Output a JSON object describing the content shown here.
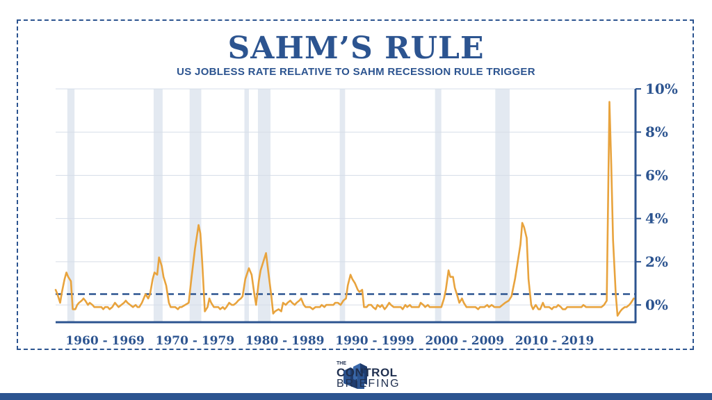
{
  "title": "SAHM’S RULE",
  "subtitle": "US JOBLESS RATE RELATIVE TO SAHM RECESSION RULE TRIGGER",
  "logo": {
    "the": "THE",
    "word1": "CONTROL",
    "word2": "BRIEFING"
  },
  "colors": {
    "brand": "#2c5490",
    "line": "#e8a33d",
    "recession_band": "#e3e9f1",
    "grid": "#d6dde8"
  },
  "chart_data": {
    "type": "line",
    "title": "SAHM’S RULE",
    "subtitle": "US JOBLESS RATE RELATIVE TO SAHM RECESSION RULE TRIGGER",
    "xlabel": "",
    "ylabel": "",
    "y_axis_side": "right",
    "xlim": [
      1959.0,
      2023.5
    ],
    "ylim": [
      -0.8,
      10
    ],
    "yticks": [
      0,
      2,
      4,
      6,
      8,
      10
    ],
    "ytick_labels": [
      "0%",
      "2%",
      "4%",
      "6%",
      "8%",
      "10%"
    ],
    "x_category_labels": [
      {
        "label": "1960 - 1969",
        "center": 1964.5
      },
      {
        "label": "1970 - 1979",
        "center": 1974.5
      },
      {
        "label": "1980 - 1989",
        "center": 1984.5
      },
      {
        "label": "1990 - 1999",
        "center": 1994.5
      },
      {
        "label": "2000 - 2009",
        "center": 2004.5
      },
      {
        "label": "2010 - 2019",
        "center": 2014.5
      }
    ],
    "grid": true,
    "threshold": {
      "value": 0.5,
      "style": "dashed"
    },
    "recession_bands": [
      [
        1960.3,
        1961.1
      ],
      [
        1969.9,
        1970.9
      ],
      [
        1973.9,
        1975.2
      ],
      [
        1980.0,
        1980.5
      ],
      [
        1981.5,
        1982.9
      ],
      [
        1990.6,
        1991.2
      ],
      [
        2001.2,
        2001.9
      ],
      [
        2007.9,
        2009.5
      ]
    ],
    "series": [
      {
        "x": [
          1959.0,
          1959.2,
          1959.5,
          1959.7,
          1960.0,
          1960.2,
          1960.4,
          1960.7,
          1960.9,
          1961.2,
          1961.4,
          1961.6,
          1961.9,
          1962.1,
          1962.3,
          1962.6,
          1962.8,
          1963.1,
          1963.3,
          1963.6,
          1963.8,
          1964.1,
          1964.3,
          1964.5,
          1964.8,
          1965.0,
          1965.3,
          1965.6,
          1965.8,
          1966.0,
          1966.3,
          1966.6,
          1966.8,
          1967.0,
          1967.3,
          1967.6,
          1967.9,
          1968.1,
          1968.3,
          1968.6,
          1968.8,
          1969.0,
          1969.3,
          1969.5,
          1969.8,
          1970.0,
          1970.3,
          1970.5,
          1970.8,
          1971.0,
          1971.3,
          1971.6,
          1971.8,
          1972.0,
          1972.3,
          1972.6,
          1972.8,
          1973.0,
          1973.4,
          1973.8,
          1974.1,
          1974.5,
          1974.9,
          1975.1,
          1975.3,
          1975.6,
          1975.9,
          1976.1,
          1976.3,
          1976.6,
          1976.8,
          1977.1,
          1977.3,
          1977.6,
          1977.8,
          1978.0,
          1978.3,
          1978.6,
          1978.8,
          1979.1,
          1979.3,
          1979.6,
          1979.8,
          1980.1,
          1980.5,
          1980.8,
          1981.1,
          1981.3,
          1981.6,
          1981.8,
          1982.1,
          1982.4,
          1982.7,
          1983.0,
          1983.2,
          1983.4,
          1983.8,
          1984.1,
          1984.3,
          1984.6,
          1984.8,
          1985.1,
          1985.3,
          1985.6,
          1985.8,
          1986.1,
          1986.3,
          1986.6,
          1986.8,
          1987.1,
          1987.3,
          1987.6,
          1987.9,
          1988.1,
          1988.4,
          1988.6,
          1988.9,
          1989.1,
          1989.4,
          1989.6,
          1989.9,
          1990.1,
          1990.4,
          1990.7,
          1991.0,
          1991.3,
          1991.5,
          1991.8,
          1992.0,
          1992.3,
          1992.6,
          1992.8,
          1993.1,
          1993.3,
          1993.6,
          1993.8,
          1994.1,
          1994.3,
          1994.6,
          1994.8,
          1995.1,
          1995.3,
          1995.6,
          1995.8,
          1996.1,
          1996.3,
          1996.6,
          1996.8,
          1997.1,
          1997.4,
          1997.6,
          1997.9,
          1998.1,
          1998.4,
          1998.6,
          1998.9,
          1999.1,
          1999.4,
          1999.6,
          1999.9,
          2000.1,
          2000.4,
          2000.6,
          2000.9,
          2001.2,
          2001.4,
          2001.7,
          2001.9,
          2002.2,
          2002.4,
          2002.7,
          2002.9,
          2003.2,
          2003.4,
          2003.7,
          2003.9,
          2004.2,
          2004.4,
          2004.7,
          2004.9,
          2005.2,
          2005.5,
          2005.7,
          2006.0,
          2006.2,
          2006.5,
          2006.7,
          2007.0,
          2007.2,
          2007.5,
          2007.8,
          2008.1,
          2008.4,
          2008.7,
          2009.0,
          2009.4,
          2009.7,
          2010.1,
          2010.4,
          2010.7,
          2010.9,
          2011.1,
          2011.4,
          2011.6,
          2011.9,
          2012.1,
          2012.4,
          2012.7,
          2012.9,
          2013.2,
          2013.4,
          2013.7,
          2013.9,
          2014.2,
          2014.4,
          2014.7,
          2014.9,
          2015.2,
          2015.4,
          2015.7,
          2015.9,
          2016.2,
          2016.5,
          2016.7,
          2017.0,
          2017.2,
          2017.5,
          2017.7,
          2018.0,
          2018.2,
          2018.5,
          2018.7,
          2019.0,
          2019.2,
          2019.5,
          2019.7,
          2020.0,
          2020.3,
          2020.6,
          2020.8,
          2021.0,
          2021.3,
          2021.5,
          2021.8,
          2022.0,
          2022.3,
          2022.5,
          2022.8,
          2023.0,
          2023.3
        ],
        "y": [
          0.7,
          0.5,
          0.1,
          0.6,
          1.2,
          1.5,
          1.3,
          1.1,
          -0.2,
          -0.2,
          0.0,
          0.1,
          0.2,
          0.3,
          0.2,
          0.0,
          0.1,
          0.0,
          -0.1,
          -0.1,
          -0.1,
          -0.1,
          -0.2,
          -0.1,
          -0.1,
          -0.2,
          -0.1,
          0.1,
          0.0,
          -0.1,
          0.0,
          0.1,
          0.2,
          0.1,
          0.0,
          -0.1,
          0.0,
          -0.1,
          -0.1,
          0.1,
          0.3,
          0.5,
          0.3,
          0.5,
          1.2,
          1.5,
          1.4,
          2.2,
          1.8,
          1.3,
          0.9,
          0.1,
          -0.1,
          -0.1,
          -0.1,
          -0.2,
          -0.1,
          -0.1,
          0.0,
          0.1,
          1.2,
          2.6,
          3.7,
          3.3,
          2.0,
          -0.3,
          -0.1,
          0.3,
          0.1,
          -0.1,
          -0.1,
          -0.1,
          -0.2,
          -0.1,
          -0.2,
          -0.1,
          0.1,
          0.0,
          0.0,
          0.1,
          0.2,
          0.3,
          0.4,
          1.2,
          1.7,
          1.4,
          0.5,
          0.0,
          1.1,
          1.6,
          2.0,
          2.4,
          1.4,
          0.4,
          -0.4,
          -0.3,
          -0.2,
          -0.3,
          0.1,
          0.0,
          0.1,
          0.2,
          0.1,
          0.0,
          0.1,
          0.2,
          0.3,
          0.0,
          -0.1,
          -0.1,
          -0.1,
          -0.2,
          -0.1,
          -0.1,
          -0.1,
          0.0,
          -0.1,
          0.0,
          0.0,
          0.0,
          0.0,
          0.1,
          0.1,
          0.0,
          0.2,
          0.3,
          0.9,
          1.4,
          1.2,
          1.0,
          0.7,
          0.6,
          0.7,
          -0.1,
          -0.1,
          0.0,
          0.0,
          -0.1,
          -0.2,
          0.0,
          -0.1,
          0.0,
          -0.2,
          -0.1,
          0.1,
          0.0,
          -0.1,
          -0.1,
          -0.1,
          -0.1,
          -0.2,
          0.0,
          -0.1,
          0.0,
          -0.1,
          -0.1,
          -0.1,
          -0.1,
          0.1,
          0.0,
          -0.1,
          0.0,
          -0.1,
          -0.1,
          -0.1,
          -0.1,
          -0.1,
          -0.1,
          0.3,
          0.7,
          1.6,
          1.3,
          1.3,
          0.8,
          0.4,
          0.1,
          0.3,
          0.1,
          -0.1,
          -0.1,
          -0.1,
          -0.1,
          -0.1,
          -0.2,
          -0.1,
          -0.1,
          -0.1,
          0.0,
          -0.1,
          0.0,
          -0.1,
          -0.1,
          -0.1,
          0.0,
          0.1,
          0.2,
          0.4,
          1.2,
          2.0,
          2.8,
          3.8,
          3.6,
          3.1,
          1.2,
          0.0,
          -0.2,
          0.0,
          -0.2,
          -0.2,
          0.1,
          -0.1,
          -0.1,
          -0.1,
          -0.2,
          -0.1,
          -0.1,
          0.0,
          -0.1,
          -0.2,
          -0.2,
          -0.1,
          -0.1,
          -0.1,
          -0.1,
          -0.1,
          -0.1,
          -0.1,
          0.0,
          -0.1,
          -0.1,
          -0.1,
          -0.1,
          -0.1,
          -0.1,
          -0.1,
          -0.1,
          0.0,
          0.2,
          9.4,
          6.5,
          3.0,
          0.5,
          -0.5,
          -0.3,
          -0.2,
          -0.1,
          -0.1,
          0.0,
          0.1,
          0.3
        ]
      }
    ]
  }
}
